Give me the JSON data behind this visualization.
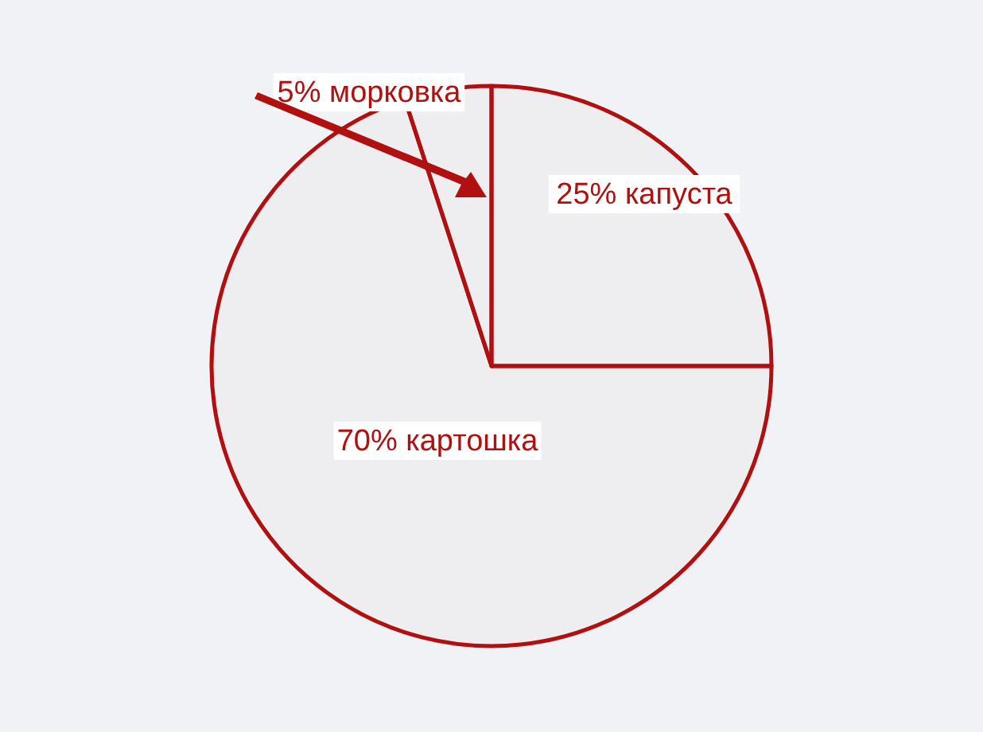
{
  "chart_data": {
    "type": "pie",
    "categories": [
      "капуста",
      "картошка",
      "морковка"
    ],
    "values": [
      25,
      70,
      5
    ],
    "colors": [
      "#b01010",
      "#b01010",
      "#b01010"
    ],
    "value_labels": [
      "25%",
      "70%",
      "5%"
    ]
  }
}
